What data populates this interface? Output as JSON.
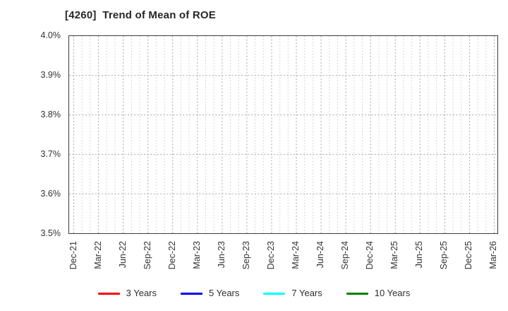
{
  "title": "[4260]  Trend of Mean of ROE",
  "axes": {
    "y_tick_labels_top_to_bottom": [
      "4.0%",
      "3.9%",
      "3.8%",
      "3.7%",
      "3.6%",
      "3.5%"
    ],
    "x_tick_labels": [
      "Dec-21",
      "Mar-22",
      "Jun-22",
      "Sep-22",
      "Dec-22",
      "Mar-23",
      "Jun-23",
      "Sep-23",
      "Dec-23",
      "Mar-24",
      "Jun-24",
      "Sep-24",
      "Dec-24",
      "Mar-25",
      "Jun-25",
      "Sep-25",
      "Dec-25",
      "Mar-26"
    ],
    "minor_gridlines_per_major": 3,
    "grid_color_major": "#a8a8a8",
    "grid_color_minor": "#bdbdbd",
    "spine_color": "#3c3c3c"
  },
  "legend": {
    "items": [
      {
        "label": "3 Years",
        "color": "#ff0000"
      },
      {
        "label": "5 Years",
        "color": "#0000ee"
      },
      {
        "label": "7 Years",
        "color": "#00ffff"
      },
      {
        "label": "10 Years",
        "color": "#008000"
      }
    ]
  },
  "chart_data": {
    "type": "line",
    "title": "[4260]  Trend of Mean of ROE",
    "xlabel": "",
    "ylabel": "",
    "x_categories": [
      "Dec-21",
      "Mar-22",
      "Jun-22",
      "Sep-22",
      "Dec-22",
      "Mar-23",
      "Jun-23",
      "Sep-23",
      "Dec-23",
      "Mar-24",
      "Jun-24",
      "Sep-24",
      "Dec-24",
      "Mar-25",
      "Jun-25",
      "Sep-25",
      "Dec-25",
      "Mar-26"
    ],
    "ylim": [
      3.5,
      4.0
    ],
    "ytick_values_percent": [
      3.5,
      3.6,
      3.7,
      3.8,
      3.9,
      4.0
    ],
    "grid": true,
    "legend_position": "bottom",
    "plot_is_empty": true,
    "series": [
      {
        "name": "3 Years",
        "color": "#ff0000",
        "values": []
      },
      {
        "name": "5 Years",
        "color": "#0000ee",
        "values": []
      },
      {
        "name": "7 Years",
        "color": "#00ffff",
        "values": []
      },
      {
        "name": "10 Years",
        "color": "#008000",
        "values": []
      }
    ]
  }
}
